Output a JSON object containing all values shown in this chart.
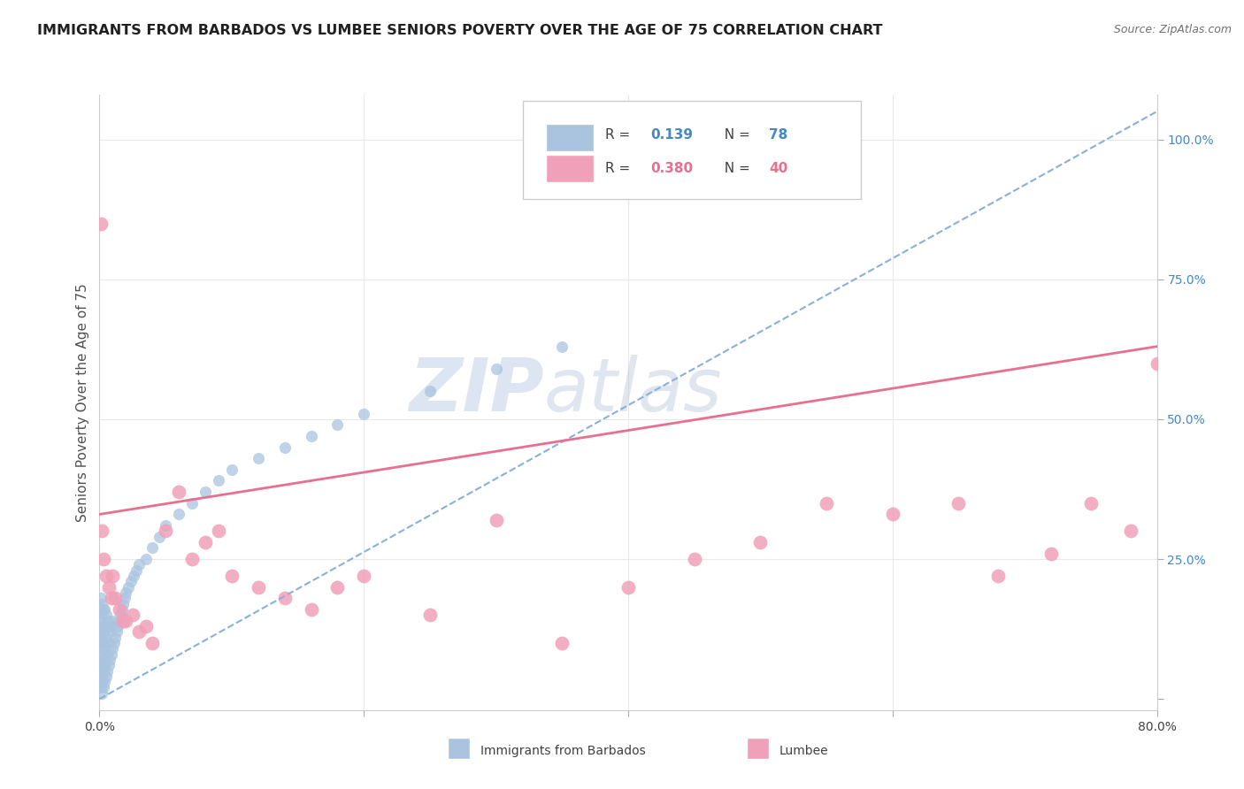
{
  "title": "IMMIGRANTS FROM BARBADOS VS LUMBEE SENIORS POVERTY OVER THE AGE OF 75 CORRELATION CHART",
  "source": "Source: ZipAtlas.com",
  "ylabel": "Seniors Poverty Over the Age of 75",
  "xlim": [
    0.0,
    0.8
  ],
  "ylim": [
    -0.02,
    1.08
  ],
  "blue_color": "#aac4e0",
  "pink_color": "#f0a0b8",
  "blue_line_color": "#8ab0d8",
  "pink_line_color": "#e8708e",
  "watermark": "ZIPatlas",
  "watermark_color": "#cddaeb",
  "grid_color": "#e8e8e8",
  "blue_scatter_x": [
    0.001,
    0.001,
    0.001,
    0.001,
    0.001,
    0.001,
    0.001,
    0.001,
    0.001,
    0.001,
    0.002,
    0.002,
    0.002,
    0.002,
    0.002,
    0.002,
    0.002,
    0.002,
    0.003,
    0.003,
    0.003,
    0.003,
    0.003,
    0.003,
    0.004,
    0.004,
    0.004,
    0.004,
    0.004,
    0.005,
    0.005,
    0.005,
    0.005,
    0.006,
    0.006,
    0.006,
    0.007,
    0.007,
    0.007,
    0.008,
    0.008,
    0.009,
    0.009,
    0.01,
    0.01,
    0.011,
    0.012,
    0.013,
    0.014,
    0.015,
    0.016,
    0.017,
    0.018,
    0.019,
    0.02,
    0.022,
    0.024,
    0.026,
    0.028,
    0.03,
    0.035,
    0.04,
    0.045,
    0.05,
    0.06,
    0.07,
    0.08,
    0.09,
    0.1,
    0.12,
    0.14,
    0.16,
    0.18,
    0.2,
    0.25,
    0.3,
    0.35
  ],
  "blue_scatter_y": [
    0.02,
    0.04,
    0.05,
    0.07,
    0.08,
    0.1,
    0.12,
    0.14,
    0.16,
    0.18,
    0.01,
    0.03,
    0.06,
    0.09,
    0.11,
    0.13,
    0.15,
    0.17,
    0.02,
    0.05,
    0.07,
    0.1,
    0.13,
    0.16,
    0.03,
    0.06,
    0.09,
    0.12,
    0.16,
    0.04,
    0.07,
    0.11,
    0.15,
    0.05,
    0.08,
    0.13,
    0.06,
    0.1,
    0.14,
    0.07,
    0.12,
    0.08,
    0.13,
    0.09,
    0.14,
    0.1,
    0.11,
    0.12,
    0.13,
    0.14,
    0.15,
    0.16,
    0.17,
    0.18,
    0.19,
    0.2,
    0.21,
    0.22,
    0.23,
    0.24,
    0.25,
    0.27,
    0.29,
    0.31,
    0.33,
    0.35,
    0.37,
    0.39,
    0.41,
    0.43,
    0.45,
    0.47,
    0.49,
    0.51,
    0.55,
    0.59,
    0.63
  ],
  "pink_scatter_x": [
    0.001,
    0.002,
    0.003,
    0.005,
    0.007,
    0.009,
    0.01,
    0.012,
    0.015,
    0.018,
    0.02,
    0.025,
    0.03,
    0.035,
    0.04,
    0.05,
    0.06,
    0.07,
    0.08,
    0.09,
    0.1,
    0.12,
    0.14,
    0.16,
    0.18,
    0.2,
    0.25,
    0.3,
    0.35,
    0.4,
    0.45,
    0.5,
    0.55,
    0.6,
    0.65,
    0.68,
    0.72,
    0.75,
    0.78,
    0.8
  ],
  "pink_scatter_y": [
    0.85,
    0.3,
    0.25,
    0.22,
    0.2,
    0.18,
    0.22,
    0.18,
    0.16,
    0.14,
    0.14,
    0.15,
    0.12,
    0.13,
    0.1,
    0.3,
    0.37,
    0.25,
    0.28,
    0.3,
    0.22,
    0.2,
    0.18,
    0.16,
    0.2,
    0.22,
    0.15,
    0.32,
    0.1,
    0.2,
    0.25,
    0.28,
    0.35,
    0.33,
    0.35,
    0.22,
    0.26,
    0.35,
    0.3,
    0.6
  ],
  "blue_trend_x": [
    0.0,
    0.8
  ],
  "blue_trend_y": [
    0.0,
    1.05
  ],
  "pink_trend_x": [
    0.0,
    0.8
  ],
  "pink_trend_y": [
    0.33,
    0.63
  ]
}
